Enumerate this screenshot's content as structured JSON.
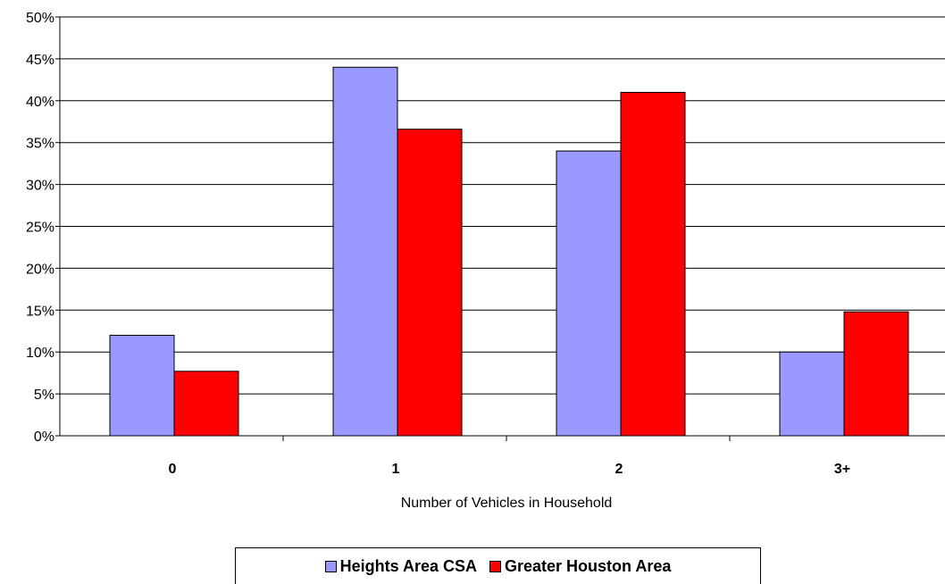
{
  "chart_data": {
    "type": "bar",
    "categories": [
      "0",
      "1",
      "2",
      "3+"
    ],
    "series": [
      {
        "name": "Heights Area CSA",
        "color": "#9999ff",
        "values": [
          12,
          44,
          34,
          10
        ]
      },
      {
        "name": "Greater Houston Area",
        "color": "#ff0000",
        "values": [
          7.7,
          36.6,
          41,
          14.8
        ]
      }
    ],
    "xlabel": "Number of Vehicles in Household",
    "ylabel": "",
    "ylim": [
      0,
      50
    ],
    "yticks": [
      "0%",
      "5%",
      "10%",
      "15%",
      "20%",
      "25%",
      "30%",
      "35%",
      "40%",
      "45%",
      "50%"
    ],
    "grid": true,
    "legend_position": "bottom"
  }
}
